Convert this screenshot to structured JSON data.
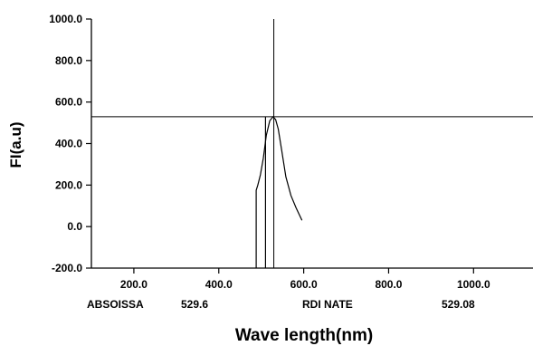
{
  "chart_data": {
    "type": "line",
    "xlabel": "Wave length(nm)",
    "ylabel": "FI(a.u)",
    "xlim": [
      100,
      1140
    ],
    "ylim": [
      -200,
      1000
    ],
    "x_ticks": [
      200,
      400,
      600,
      800,
      1000
    ],
    "x_tick_labels": [
      "200.0",
      "400.0",
      "600.0",
      "800.0",
      "1000.0"
    ],
    "y_ticks": [
      -200,
      0,
      200,
      400,
      600,
      800,
      1000
    ],
    "y_tick_labels": [
      "-200.0",
      "0.0",
      "200.0",
      "400.0",
      "600.0",
      "800.0",
      "1000.0"
    ],
    "grid": false,
    "series": [
      {
        "x": [
          488,
          488,
          488,
          492,
          498,
          505,
          512,
          520,
          528,
          534,
          540,
          548,
          558,
          570,
          582,
          596
        ],
        "y": [
          -200,
          0,
          175,
          200,
          250,
          330,
          440,
          510,
          529.08,
          515,
          470,
          370,
          240,
          150,
          90,
          30
        ]
      },
      {
        "x": [
          510,
          510
        ],
        "y": [
          -200,
          529.08
        ]
      }
    ],
    "cursor": {
      "x": 529.6,
      "y": 529.08
    },
    "readout": {
      "abscissa_label": "ABSOISSA",
      "abscissa_value": "529.6",
      "ordinate_label": "RDI NATE",
      "ordinate_value": "529.08"
    }
  }
}
